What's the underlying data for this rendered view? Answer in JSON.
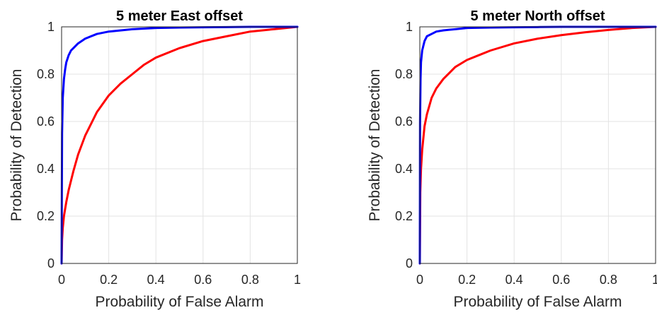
{
  "chart_data": [
    {
      "type": "line",
      "title": "5 meter East offset",
      "xlabel": "Probability of False Alarm",
      "ylabel": "Probability of Detection",
      "xlim": [
        0,
        1
      ],
      "ylim": [
        0,
        1
      ],
      "xticks": [
        "0",
        "0.2",
        "0.4",
        "0.6",
        "0.8",
        "1"
      ],
      "yticks": [
        "0",
        "0.2",
        "0.4",
        "0.6",
        "0.8",
        "1"
      ],
      "grid": true,
      "series": [
        {
          "color": "#0000ff",
          "x": [
            0,
            0.002,
            0.005,
            0.01,
            0.015,
            0.02,
            0.03,
            0.04,
            0.05,
            0.07,
            0.1,
            0.15,
            0.2,
            0.3,
            0.4,
            0.5,
            0.6,
            0.7,
            0.8,
            0.9,
            1.0
          ],
          "y": [
            0,
            0.55,
            0.7,
            0.78,
            0.82,
            0.85,
            0.88,
            0.9,
            0.91,
            0.93,
            0.95,
            0.97,
            0.98,
            0.99,
            0.995,
            0.997,
            0.998,
            0.999,
            1.0,
            1.0,
            1.0
          ]
        },
        {
          "color": "#ff0000",
          "x": [
            0,
            0.002,
            0.005,
            0.01,
            0.02,
            0.03,
            0.05,
            0.07,
            0.1,
            0.15,
            0.2,
            0.25,
            0.3,
            0.35,
            0.4,
            0.5,
            0.6,
            0.7,
            0.8,
            0.9,
            1.0
          ],
          "y": [
            0,
            0.1,
            0.15,
            0.2,
            0.26,
            0.31,
            0.39,
            0.46,
            0.54,
            0.64,
            0.71,
            0.76,
            0.8,
            0.84,
            0.87,
            0.91,
            0.94,
            0.96,
            0.98,
            0.99,
            1.0
          ]
        }
      ]
    },
    {
      "type": "line",
      "title": "5 meter North offset",
      "xlabel": "Probability of False Alarm",
      "ylabel": "Probability of Detection",
      "xlim": [
        0,
        1
      ],
      "ylim": [
        0,
        1
      ],
      "xticks": [
        "0",
        "0.2",
        "0.4",
        "0.6",
        "0.8",
        "1"
      ],
      "yticks": [
        "0",
        "0.2",
        "0.4",
        "0.6",
        "0.8",
        "1"
      ],
      "grid": true,
      "series": [
        {
          "color": "#0000ff",
          "x": [
            0,
            0.001,
            0.003,
            0.005,
            0.01,
            0.015,
            0.02,
            0.03,
            0.05,
            0.07,
            0.1,
            0.15,
            0.2,
            0.3,
            0.4,
            0.5,
            0.6,
            0.8,
            1.0
          ],
          "y": [
            0,
            0.6,
            0.78,
            0.85,
            0.9,
            0.92,
            0.94,
            0.96,
            0.97,
            0.98,
            0.985,
            0.99,
            0.995,
            0.997,
            0.998,
            0.999,
            1.0,
            1.0,
            1.0
          ]
        },
        {
          "color": "#ff0000",
          "x": [
            0,
            0.002,
            0.005,
            0.01,
            0.02,
            0.03,
            0.05,
            0.07,
            0.1,
            0.15,
            0.2,
            0.25,
            0.3,
            0.4,
            0.5,
            0.6,
            0.7,
            0.8,
            0.9,
            1.0
          ],
          "y": [
            0,
            0.3,
            0.4,
            0.48,
            0.58,
            0.63,
            0.7,
            0.74,
            0.78,
            0.83,
            0.86,
            0.88,
            0.9,
            0.93,
            0.95,
            0.965,
            0.977,
            0.987,
            0.995,
            1.0
          ]
        }
      ]
    }
  ]
}
